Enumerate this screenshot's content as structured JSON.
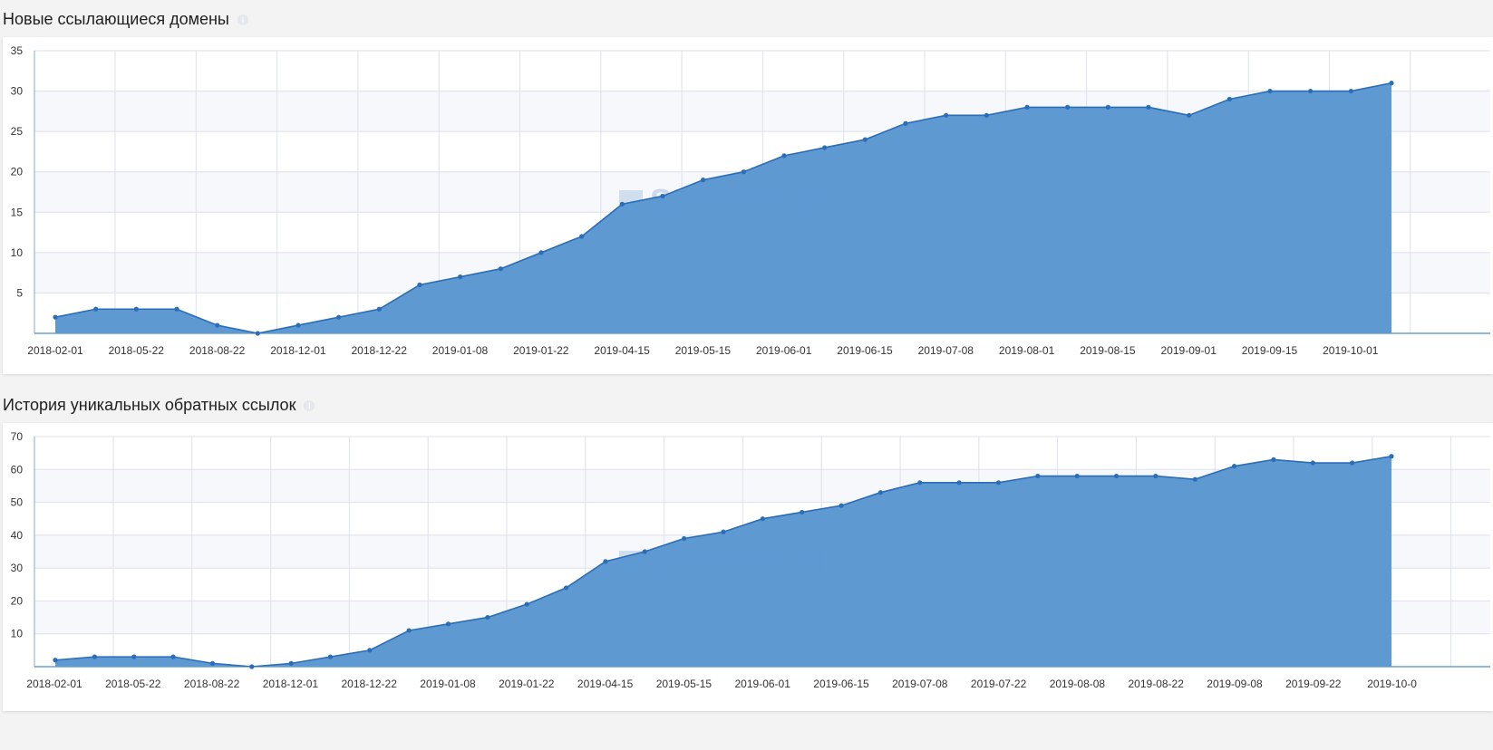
{
  "colors": {
    "area": "#5b97d1",
    "line": "#2a6db8",
    "grid": "#dde1ea",
    "band": "#f7f8fb"
  },
  "watermark_text": "SERPSTAT",
  "chart_data": [
    {
      "type": "area",
      "title": "Новые ссылающиеся домены",
      "ylim": [
        0,
        35
      ],
      "yticks": [
        5,
        10,
        15,
        20,
        25,
        30,
        35
      ],
      "xtick_labels": [
        "2018-02-01",
        "2018-05-22",
        "2018-08-22",
        "2018-12-01",
        "2018-12-22",
        "2019-01-08",
        "2019-01-22",
        "2019-04-15",
        "2019-05-15",
        "2019-06-01",
        "2019-06-15",
        "2019-07-08",
        "2019-08-01",
        "2019-08-15",
        "2019-09-01",
        "2019-09-15",
        "2019-10-01"
      ],
      "values": [
        2,
        3,
        3,
        3,
        1,
        0,
        1,
        2,
        3,
        6,
        7,
        8,
        10,
        12,
        16,
        17,
        19,
        20,
        22,
        23,
        24,
        26,
        27,
        27,
        28,
        28,
        28,
        28,
        27,
        29,
        30,
        30,
        30,
        31
      ],
      "grid": true
    },
    {
      "type": "area",
      "title": "История уникальных обратных ссылок",
      "ylim": [
        0,
        70
      ],
      "yticks": [
        10,
        20,
        30,
        40,
        50,
        60,
        70
      ],
      "xtick_labels": [
        "2018-02-01",
        "2018-05-22",
        "2018-08-22",
        "2018-12-01",
        "2018-12-22",
        "2019-01-08",
        "2019-01-22",
        "2019-04-15",
        "2019-05-15",
        "2019-06-01",
        "2019-06-15",
        "2019-07-08",
        "2019-07-22",
        "2019-08-08",
        "2019-08-22",
        "2019-09-08",
        "2019-09-22",
        "2019-10-0"
      ],
      "values": [
        2,
        3,
        3,
        3,
        1,
        0,
        1,
        3,
        5,
        11,
        13,
        15,
        19,
        24,
        32,
        35,
        39,
        41,
        45,
        47,
        49,
        53,
        56,
        56,
        56,
        58,
        58,
        58,
        58,
        57,
        61,
        63,
        62,
        62,
        64
      ],
      "grid": true
    }
  ]
}
